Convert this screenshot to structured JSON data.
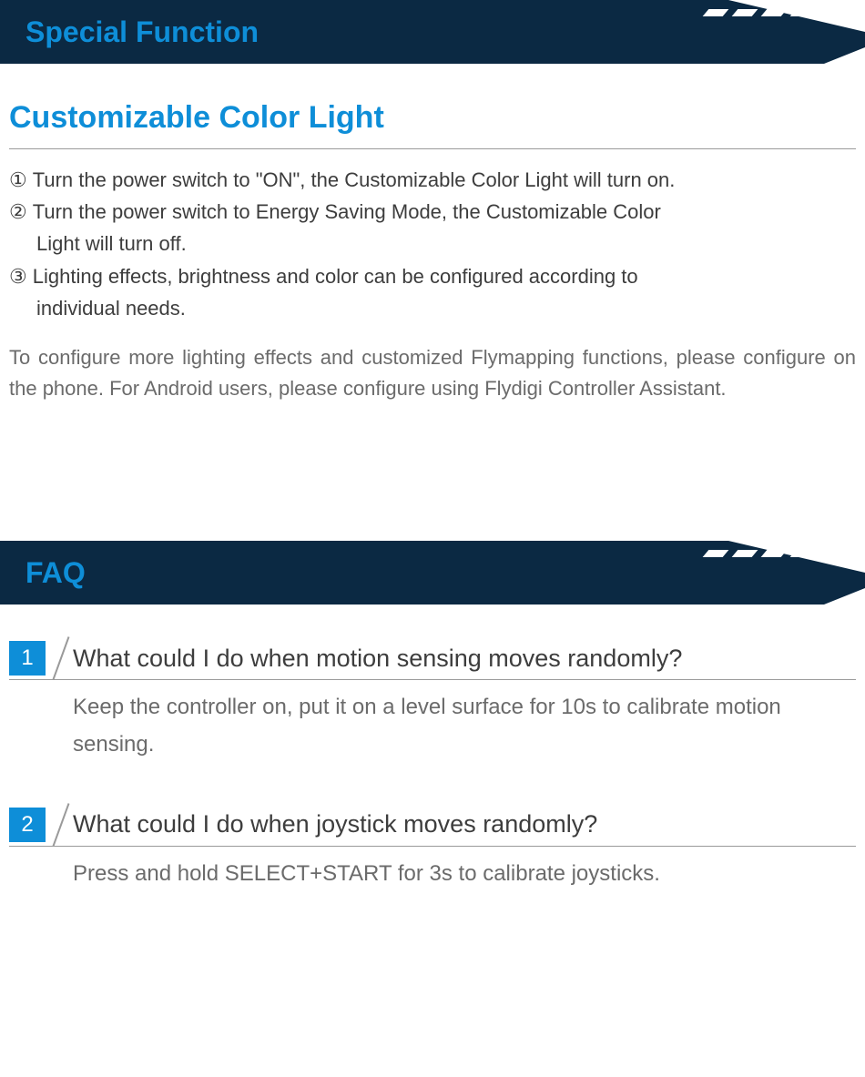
{
  "header1": {
    "title": "Special Function",
    "bg_color": "#0b2943",
    "title_color": "#0e8ed8",
    "slash_color": "#ffffff",
    "slash_count": 5
  },
  "section1": {
    "title": "Customizable Color Light",
    "title_color": "#0e8ed8",
    "steps": [
      {
        "marker": "①",
        "text": "Turn the power switch to \"ON\", the Customizable Color Light will turn on."
      },
      {
        "marker": "②",
        "text": "Turn the power switch to Energy Saving Mode, the Customizable Color",
        "cont": "Light will turn off."
      },
      {
        "marker": "③",
        "text": "Lighting effects, brightness and color can be configured according to",
        "cont": "individual needs."
      }
    ],
    "description": "To configure more lighting effects and customized Flymapping functions, please configure on the phone. For Android users, please configure using Flydigi Controller Assistant."
  },
  "header2": {
    "title": "FAQ",
    "bg_color": "#0b2943",
    "title_color": "#0e8ed8",
    "slash_color": "#ffffff",
    "slash_count": 5
  },
  "faq": [
    {
      "num": "1",
      "question": "What could I do when motion sensing moves randomly?",
      "answer": "Keep the controller on, put it on a level surface for 10s to  calibrate motion sensing."
    },
    {
      "num": "2",
      "question": "What could I do when joystick moves randomly?",
      "answer": "Press and hold SELECT+START for 3s to calibrate joysticks."
    }
  ],
  "colors": {
    "accent": "#0e8ed8",
    "header_bg": "#0b2943",
    "body_text": "#3d3d3d",
    "muted_text": "#6b6b6b",
    "divider": "#9a9a9a",
    "white": "#ffffff"
  },
  "typography": {
    "header_title_size": 32,
    "section_title_size": 34,
    "body_size": 22,
    "faq_q_size": 27,
    "faq_a_size": 24
  }
}
